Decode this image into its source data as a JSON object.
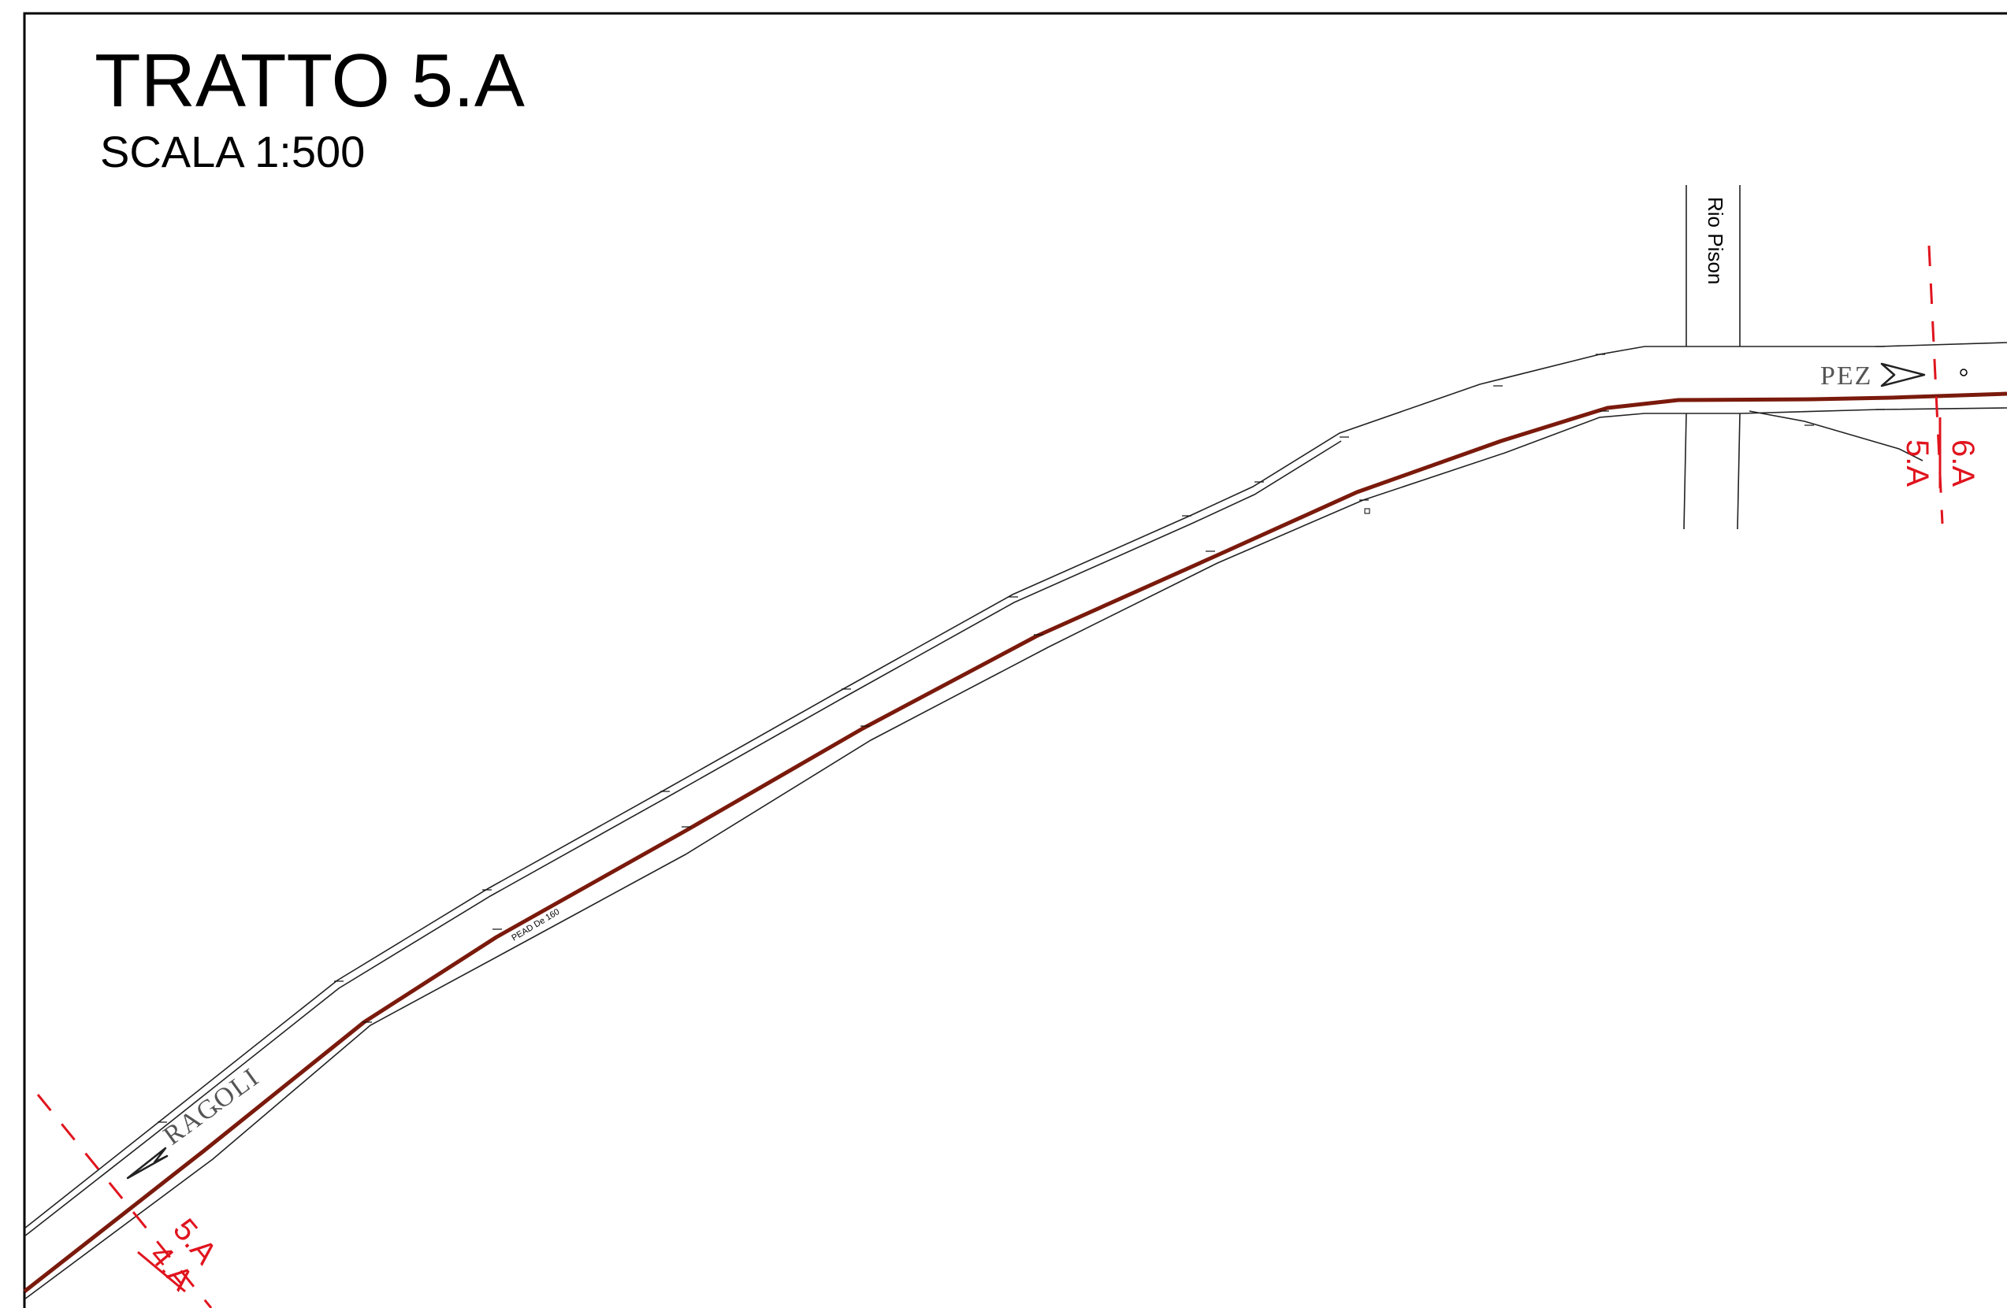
{
  "drawing": {
    "title": "TRATTO 5.A",
    "scale": "SCALA 1:500"
  },
  "labels": {
    "river": "Rio Pison",
    "direction_left": "RAGOLI",
    "direction_right": "PEZ",
    "pipe": "PEAD De 160"
  },
  "sections": {
    "left": {
      "top": "5.A",
      "bottom": "4.A"
    },
    "right": {
      "top": "6.A",
      "bottom": "5.A"
    }
  },
  "colors": {
    "pipe": "#7a1a0c",
    "section_marks": "#e0141e",
    "lines": "#222222"
  }
}
